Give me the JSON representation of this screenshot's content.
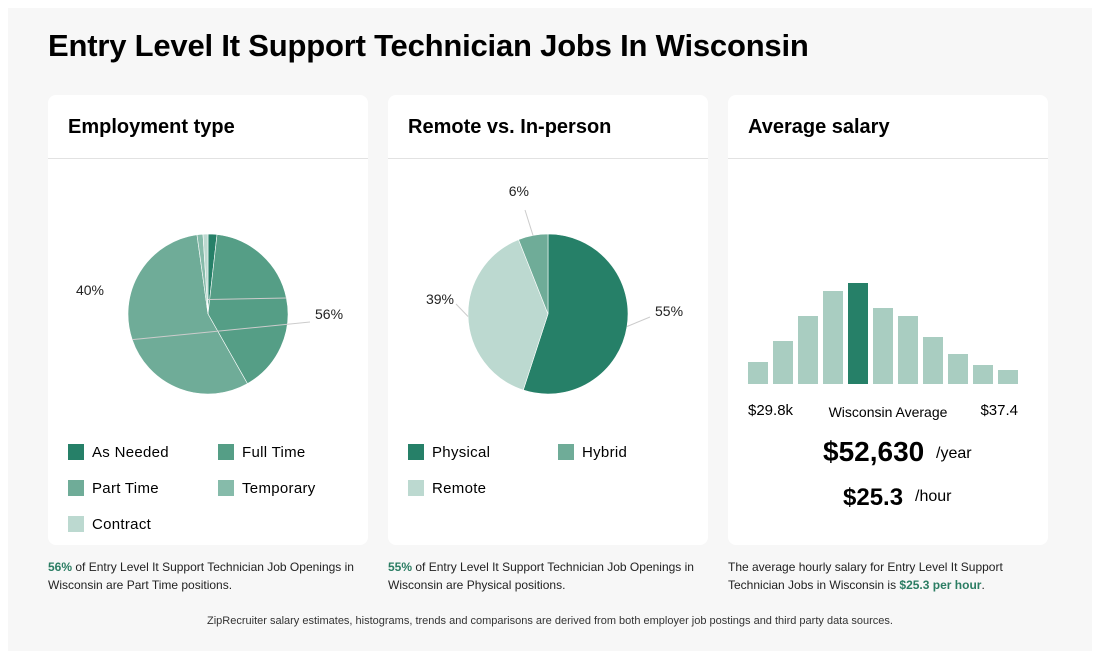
{
  "title": "Entry Level It Support Technician Jobs In Wisconsin",
  "colors": {
    "dark": "#268068",
    "mid": "#559e86",
    "light_mid": "#6fac98",
    "light": "#86bbaa",
    "pale": "#bcd9d0",
    "bar": "#a9cdc1",
    "highlight": "#2b7d63"
  },
  "chart_data": [
    {
      "type": "pie",
      "title": "Employment type",
      "slices": [
        {
          "label": "As Needed",
          "value": 1.8,
          "color": "#268068"
        },
        {
          "label": "Full Time",
          "value": 40,
          "color": "#559e86",
          "display": "40%"
        },
        {
          "label": "Part Time",
          "value": 56,
          "color": "#6fac98",
          "display": "56%"
        },
        {
          "label": "Temporary",
          "value": 1.2,
          "color": "#86bbaa"
        },
        {
          "label": "Contract",
          "value": 1.0,
          "color": "#bcd9d0"
        }
      ],
      "legend": [
        "As Needed",
        "Full Time",
        "Part Time",
        "Temporary",
        "Contract"
      ]
    },
    {
      "type": "pie",
      "title": "Remote vs. In-person",
      "slices": [
        {
          "label": "Physical",
          "value": 55,
          "color": "#268068",
          "display": "55%"
        },
        {
          "label": "Remote",
          "value": 39,
          "color": "#bcd9d0",
          "display": "39%"
        },
        {
          "label": "Hybrid",
          "value": 6,
          "color": "#6fac98",
          "display": "6%"
        }
      ],
      "legend": [
        "Physical",
        "Hybrid",
        "Remote"
      ]
    },
    {
      "type": "bar",
      "title": "Average salary",
      "values": [
        22,
        43,
        68,
        93,
        101,
        76,
        68,
        47,
        30,
        19,
        14
      ],
      "highlight_index": 4,
      "xmin_label": "$29.8k",
      "xmax_label": "$37.4",
      "center_label": "Wisconsin Average"
    }
  ],
  "legend_colors": {
    "As Needed": "#268068",
    "Full Time": "#559e86",
    "Part Time": "#6fac98",
    "Temporary": "#86bbaa",
    "Contract": "#bcd9d0",
    "Physical": "#268068",
    "Hybrid": "#6fac98",
    "Remote": "#bcd9d0"
  },
  "salary": {
    "yearly": "$52,630",
    "yearly_unit": "/year",
    "hourly": "$25.3",
    "hourly_unit": "/hour"
  },
  "notes": {
    "employment": {
      "highlight": "56%",
      "text": " of Entry Level It Support Technician Job Openings in Wisconsin are Part Time positions."
    },
    "remote": {
      "highlight": "55%",
      "text": " of Entry Level It Support Technician Job Openings in Wisconsin are Physical positions."
    },
    "salary": {
      "text": "The average hourly salary for Entry Level It Support Technician Jobs in Wisconsin is ",
      "highlight": "$25.3 per hour",
      "end": "."
    }
  },
  "footer": "ZipRecruiter salary estimates, histograms, trends and comparisons are derived from both employer job postings and third party data sources."
}
